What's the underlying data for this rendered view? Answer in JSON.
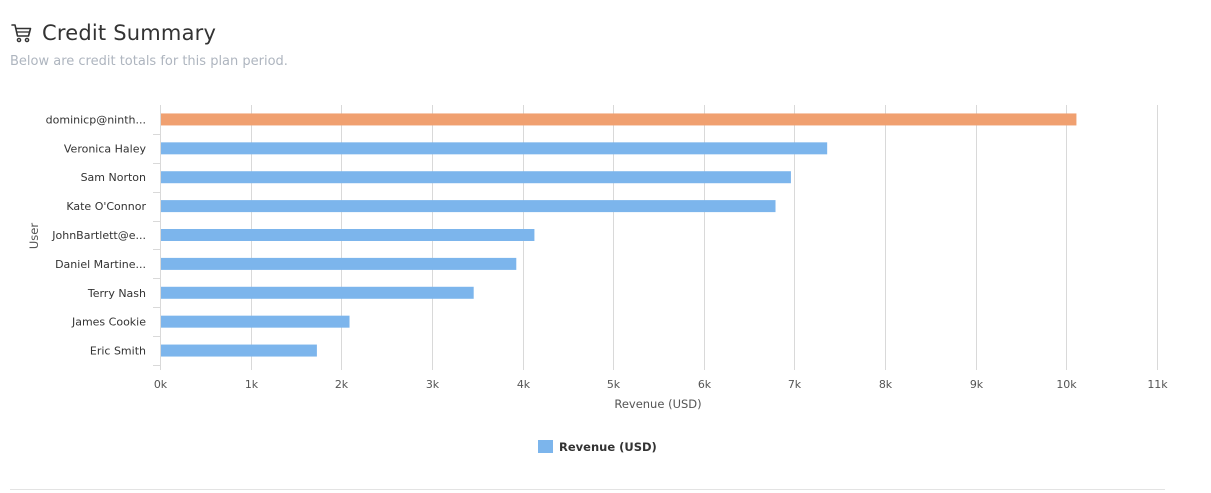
{
  "header": {
    "icon": "shopping-cart-icon",
    "title": "Credit Summary",
    "subtitle": "Below are credit totals for this plan period."
  },
  "colors": {
    "highlight": "#f0a070",
    "bar": "#7cb5ec",
    "grid": "#d9d9d9",
    "text": "#333333",
    "axis_text": "#555555"
  },
  "chart_data": {
    "type": "bar",
    "orientation": "horizontal",
    "categories": [
      "dominicp@ninth...",
      "Veronica Haley",
      "Sam Norton",
      "Kate O'Connor",
      "JohnBartlett@e...",
      "Daniel Martine...",
      "Terry Nash",
      "James Cookie",
      "Eric Smith"
    ],
    "series": [
      {
        "name": "Revenue (USD)",
        "values": [
          10100,
          7350,
          6950,
          6780,
          4120,
          3920,
          3450,
          2080,
          1720
        ]
      }
    ],
    "highlight_index": 0,
    "xlabel": "Revenue (USD)",
    "ylabel": "User",
    "xlim": [
      0,
      11000
    ],
    "x_ticks": [
      0,
      1000,
      2000,
      3000,
      4000,
      5000,
      6000,
      7000,
      8000,
      9000,
      10000,
      11000
    ],
    "x_tick_labels": [
      "0k",
      "1k",
      "2k",
      "3k",
      "4k",
      "5k",
      "6k",
      "7k",
      "8k",
      "9k",
      "10k",
      "11k"
    ],
    "grid": true,
    "legend": "bottom-center"
  }
}
